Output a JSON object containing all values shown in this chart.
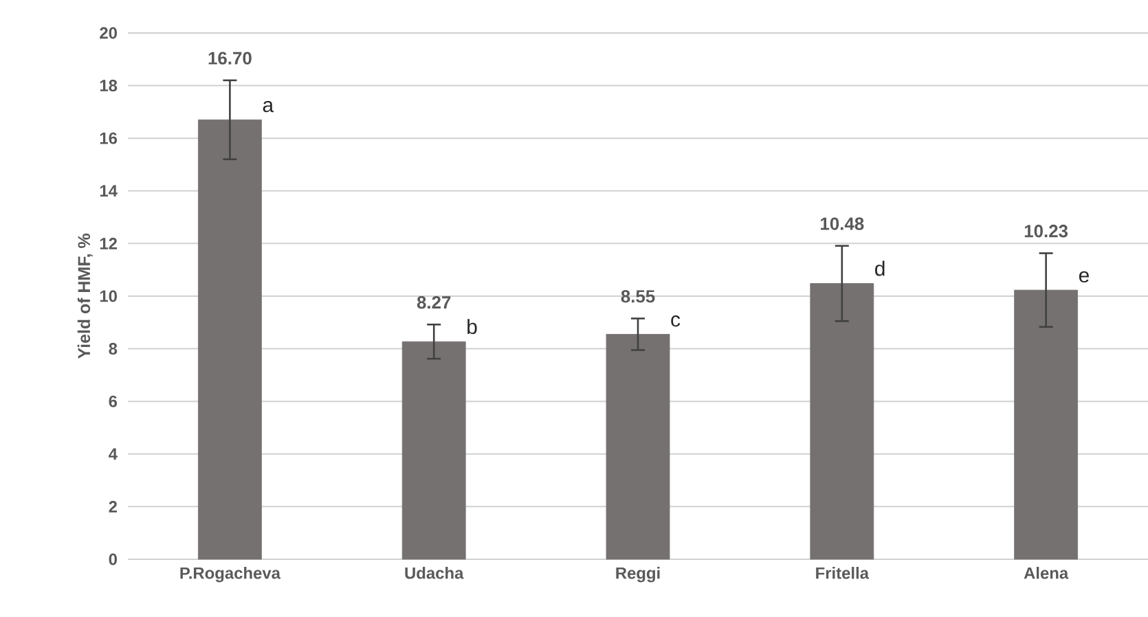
{
  "chart_data": {
    "type": "bar",
    "ylabel": "Yield of HMF, %",
    "categories": [
      "P.Rogacheva",
      "Udacha",
      "Reggi",
      "Fritella",
      "Alena"
    ],
    "values": [
      16.7,
      8.27,
      8.55,
      10.48,
      10.23
    ],
    "errors": [
      1.5,
      0.65,
      0.6,
      1.43,
      1.4
    ],
    "value_labels": [
      "16.70",
      "8.27",
      "8.55",
      "10.48",
      "10.23"
    ],
    "color": "#767171",
    "ylim": [
      0,
      20
    ],
    "yticks": [
      0,
      2,
      4,
      6,
      8,
      10,
      12,
      14,
      16,
      18,
      20
    ],
    "grid": "y",
    "annotations": [
      {
        "text": "a",
        "x": "P.Rogacheva",
        "y": 16.7
      },
      {
        "text": "b",
        "x": "Udacha",
        "y": 8.27
      },
      {
        "text": "c",
        "x": "Reggi",
        "y": 8.55
      },
      {
        "text": "d",
        "x": "Fritella",
        "y": 10.48
      },
      {
        "text": "e",
        "x": "Alena",
        "y": 10.23
      }
    ]
  }
}
